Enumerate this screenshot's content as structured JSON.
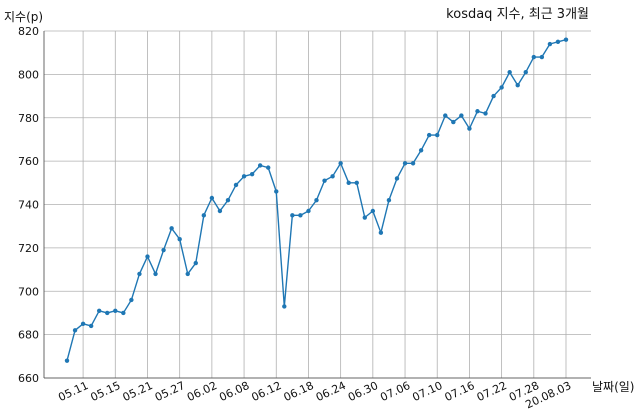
{
  "chart_data": {
    "type": "line",
    "title": "kosdaq 지수, 최근 3개월",
    "xlabel": "날짜(일)",
    "ylabel": "지수(p)",
    "ylim": [
      660,
      820
    ],
    "yticks": [
      660,
      680,
      700,
      720,
      740,
      760,
      780,
      800,
      820
    ],
    "xticks": [
      "05.11",
      "05.15",
      "05.21",
      "05.27",
      "06.02",
      "06.08",
      "06.12",
      "06.18",
      "06.24",
      "06.30",
      "07.06",
      "07.10",
      "07.16",
      "07.22",
      "07.28",
      "20.08.03"
    ],
    "grid": true,
    "line_color": "#1f77b4",
    "series": [
      {
        "values": [
          668,
          682,
          685,
          684,
          691,
          690,
          691,
          690,
          696,
          708,
          716,
          708,
          719,
          729,
          724,
          708,
          713,
          735,
          743,
          737,
          742,
          749,
          753,
          754,
          758,
          757,
          746,
          693,
          735,
          735,
          737,
          742,
          751,
          753,
          759,
          750,
          750,
          734,
          737,
          727,
          742,
          752,
          759,
          759,
          765,
          772,
          772,
          781,
          778,
          781,
          775,
          783,
          782,
          790,
          794,
          801,
          795,
          801,
          808,
          808,
          814,
          815,
          816
        ]
      }
    ]
  }
}
